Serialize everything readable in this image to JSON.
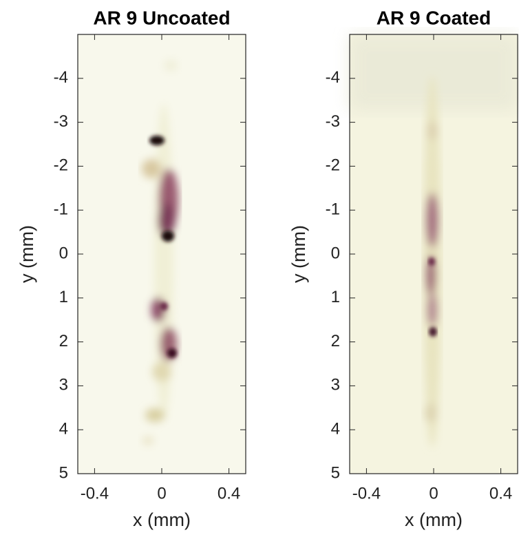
{
  "chart_data": [
    {
      "type": "heatmap",
      "title": "AR 9 Uncoated",
      "xlabel": "x (mm)",
      "ylabel": "y (mm)",
      "xlim": [
        -0.5,
        0.5
      ],
      "ylim": [
        5,
        -5
      ],
      "xticks": [
        -0.4,
        0,
        0.4
      ],
      "yticks": [
        -4,
        -3,
        -2,
        -1,
        0,
        1,
        2,
        3,
        4,
        5
      ]
    },
    {
      "type": "heatmap",
      "title": "AR 9 Coated",
      "xlabel": "x (mm)",
      "ylabel": "y (mm)",
      "xlim": [
        -0.5,
        0.5
      ],
      "ylim": [
        5,
        -5
      ],
      "xticks": [
        -0.4,
        0,
        0.4
      ],
      "yticks": [
        -4,
        -3,
        -2,
        -1,
        0,
        1,
        2,
        3,
        4,
        5
      ]
    }
  ]
}
